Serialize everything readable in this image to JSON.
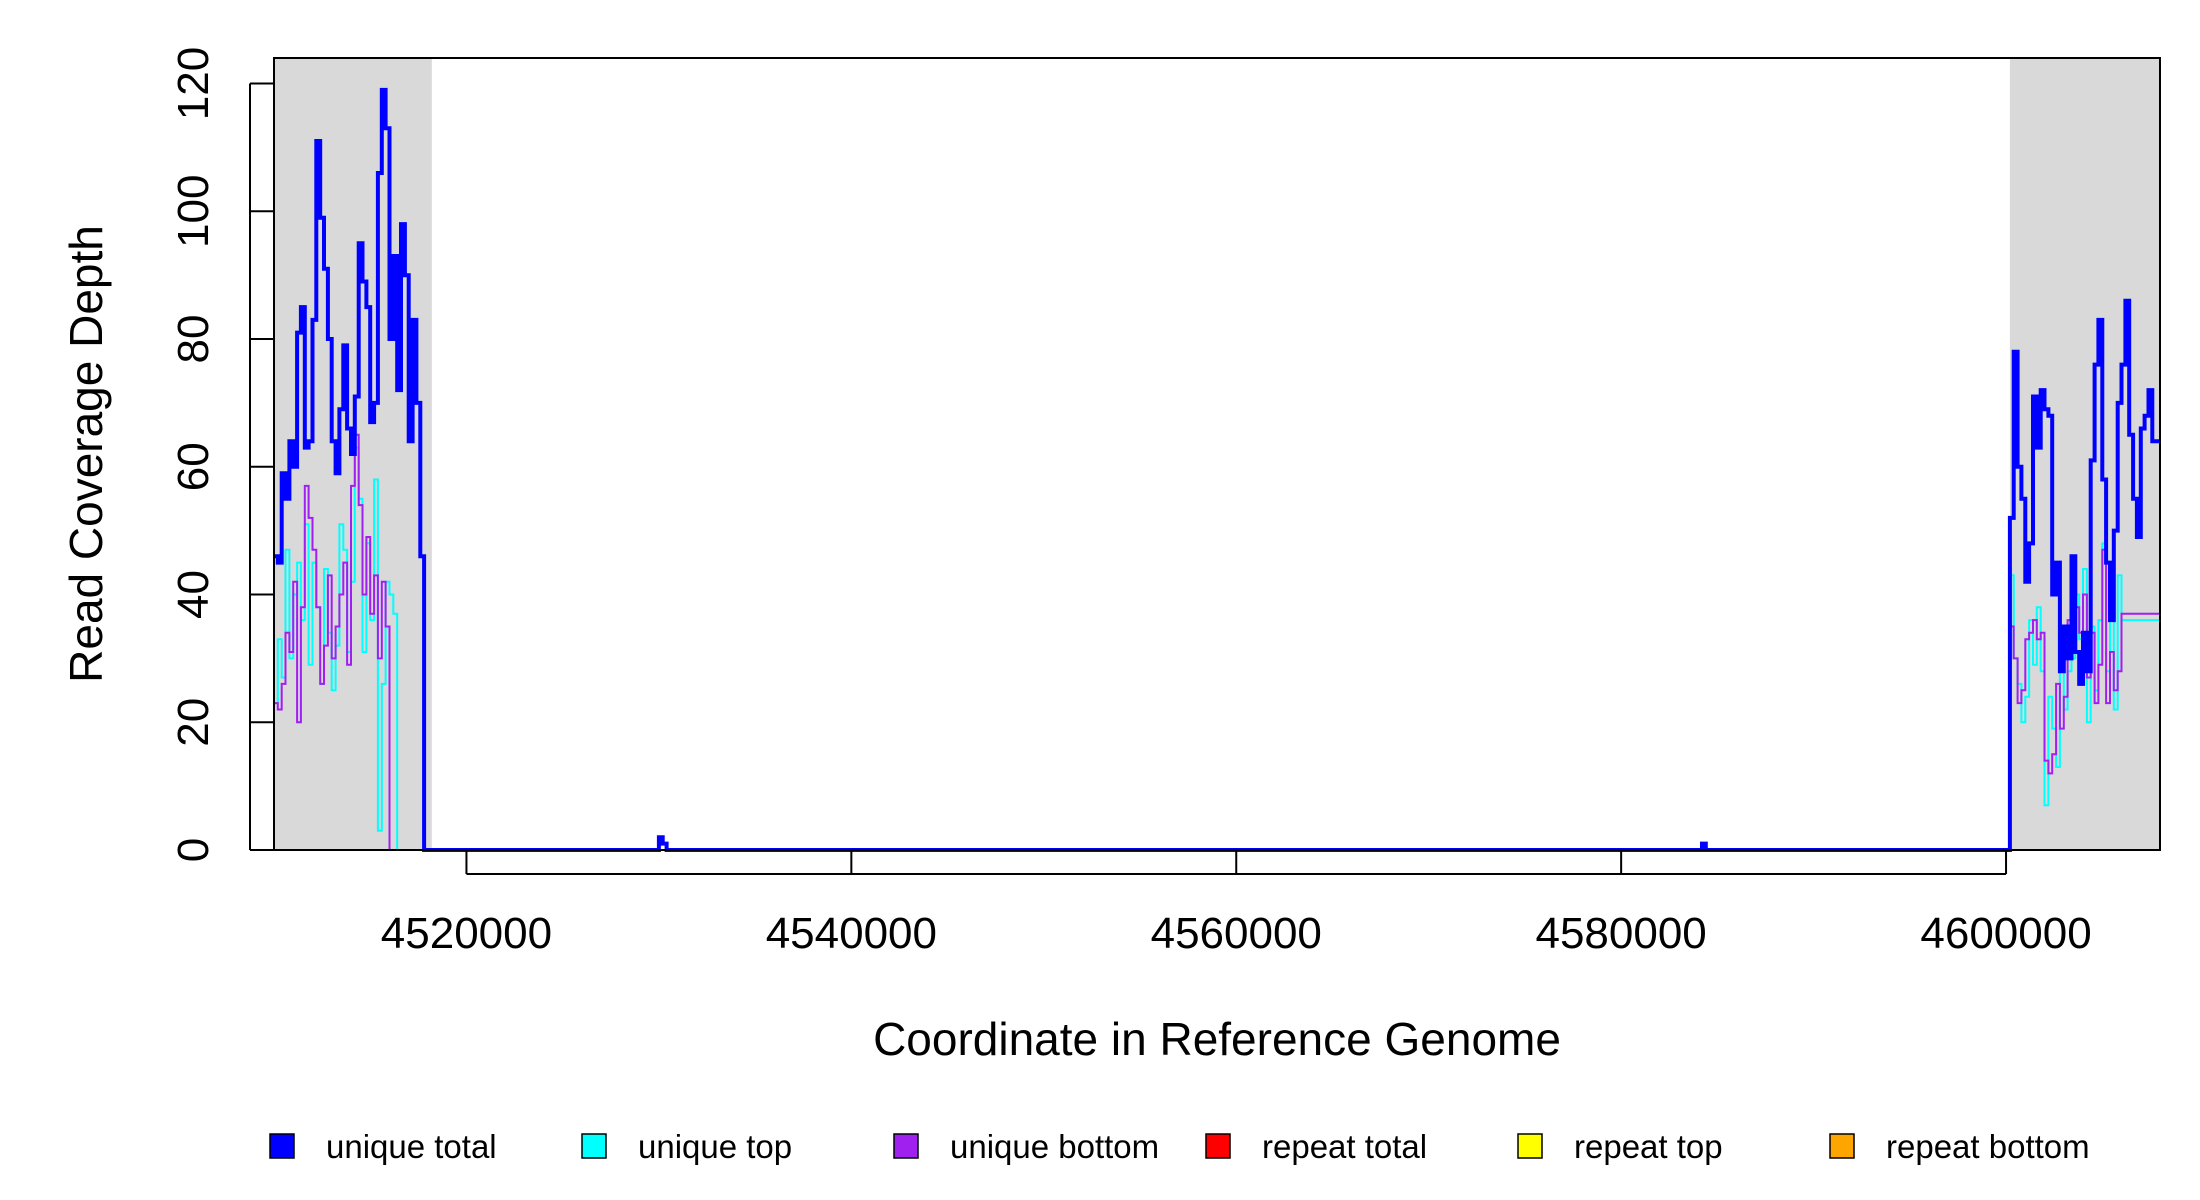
{
  "chart_data": {
    "type": "line",
    "title": "",
    "xlabel": "Coordinate in Reference Genome",
    "ylabel": "Read Coverage Depth",
    "xlim": [
      4510000,
      4608000
    ],
    "ylim": [
      0,
      124
    ],
    "x_ticks": [
      4520000,
      4540000,
      4560000,
      4580000,
      4600000
    ],
    "x_tick_labels": [
      "4520000",
      "4540000",
      "4560000",
      "4580000",
      "4600000"
    ],
    "y_ticks": [
      0,
      20,
      40,
      60,
      80,
      100,
      120
    ],
    "y_tick_labels": [
      "0",
      "20",
      "40",
      "60",
      "80",
      "100",
      "120"
    ],
    "grid": false,
    "legend_position": "bottom",
    "shaded_regions": [
      {
        "x0": 4510000,
        "x1": 4518200,
        "color": "#d9d9d9"
      },
      {
        "x0": 4600200,
        "x1": 4608000,
        "color": "#d9d9d9"
      }
    ],
    "series": [
      {
        "name": "unique total",
        "color": "#0000ff",
        "x": [
          4510000,
          4510200,
          4510400,
          4510600,
          4510800,
          4511000,
          4511200,
          4511400,
          4511600,
          4511800,
          4512000,
          4512200,
          4512400,
          4512600,
          4512800,
          4513000,
          4513200,
          4513400,
          4513600,
          4513800,
          4514000,
          4514200,
          4514400,
          4514600,
          4514800,
          4515000,
          4515200,
          4515400,
          4515600,
          4515800,
          4516000,
          4516200,
          4516400,
          4516600,
          4516800,
          4517000,
          4517200,
          4517400,
          4517600,
          4517800,
          4518000,
          4518200,
          4518400,
          4518600,
          4530000,
          4530200,
          4530400,
          4584200,
          4584400,
          4600000,
          4600200,
          4600400,
          4600600,
          4600800,
          4601000,
          4601200,
          4601400,
          4601600,
          4601800,
          4602000,
          4602200,
          4602400,
          4602600,
          4602800,
          4603000,
          4603200,
          4603400,
          4603600,
          4603800,
          4604000,
          4604200,
          4604400,
          4604600,
          4604800,
          4605000,
          4605200,
          4605400,
          4605600,
          4605800,
          4606000,
          4606200,
          4606400,
          4606600,
          4606800,
          4607000,
          4607200,
          4607400,
          4607600,
          4607800,
          4608000
        ],
        "y": [
          46,
          45,
          59,
          55,
          64,
          60,
          81,
          85,
          63,
          64,
          83,
          111,
          99,
          91,
          80,
          64,
          59,
          69,
          79,
          66,
          62,
          71,
          95,
          89,
          85,
          67,
          70,
          106,
          119,
          113,
          80,
          93,
          72,
          98,
          90,
          64,
          83,
          70,
          46,
          0,
          0,
          0,
          0,
          0,
          2,
          1,
          0,
          1,
          0,
          0,
          52,
          78,
          60,
          55,
          42,
          48,
          71,
          63,
          72,
          69,
          68,
          40,
          45,
          28,
          35,
          30,
          46,
          31,
          26,
          34,
          28,
          61,
          76,
          83,
          58,
          45,
          36,
          50,
          70,
          76,
          86,
          65,
          55,
          49,
          66,
          68,
          72,
          64,
          64,
          64
        ]
      },
      {
        "name": "unique top",
        "color": "#00ffff",
        "x": [
          4510000,
          4510200,
          4510400,
          4510600,
          4510800,
          4511000,
          4511200,
          4511400,
          4511600,
          4511800,
          4512000,
          4512200,
          4512400,
          4512600,
          4512800,
          4513000,
          4513200,
          4513400,
          4513600,
          4513800,
          4514000,
          4514200,
          4514400,
          4514600,
          4514800,
          4515000,
          4515200,
          4515400,
          4515600,
          4515800,
          4516000,
          4516200,
          4516400,
          4516600,
          4516800,
          4517000,
          4517200,
          4517400,
          4517600,
          4517800,
          4518000,
          4518200,
          4518400,
          4600000,
          4600200,
          4600400,
          4600600,
          4600800,
          4601000,
          4601200,
          4601400,
          4601600,
          4601800,
          4602000,
          4602200,
          4602400,
          4602600,
          4602800,
          4603000,
          4603200,
          4603400,
          4603600,
          4603800,
          4604000,
          4604200,
          4604400,
          4604600,
          4604800,
          4605000,
          4605200,
          4605400,
          4605600,
          4605800,
          4606000,
          4606200,
          4606400,
          4606600,
          4606800,
          4607000,
          4607200,
          4607400,
          4607600,
          4607800,
          4608000
        ],
        "y": [
          23,
          33,
          27,
          47,
          30,
          40,
          45,
          36,
          51,
          29,
          45,
          38,
          26,
          44,
          34,
          25,
          32,
          51,
          47,
          31,
          42,
          63,
          55,
          31,
          48,
          36,
          58,
          3,
          26,
          42,
          40,
          37,
          0,
          0,
          0,
          0,
          0,
          0,
          0,
          0,
          0,
          0,
          0,
          0,
          43,
          30,
          26,
          20,
          24,
          36,
          29,
          38,
          28,
          7,
          24,
          19,
          13,
          35,
          22,
          28,
          30,
          40,
          33,
          44,
          20,
          35,
          25,
          36,
          48,
          28,
          40,
          22,
          43,
          36,
          36,
          36,
          36,
          36,
          36,
          36,
          36,
          36,
          36,
          36
        ],
        "x_note_skip": []
      },
      {
        "name": "unique bottom",
        "color": "#a020f0",
        "x": [
          4510000,
          4510200,
          4510400,
          4510600,
          4510800,
          4511000,
          4511200,
          4511400,
          4511600,
          4511800,
          4512000,
          4512200,
          4512400,
          4512600,
          4512800,
          4513000,
          4513200,
          4513400,
          4513600,
          4513800,
          4514000,
          4514200,
          4514400,
          4514600,
          4514800,
          4515000,
          4515200,
          4515400,
          4515600,
          4515800,
          4516000,
          4516200,
          4516400,
          4516600,
          4516800,
          4517000,
          4517200,
          4517400,
          4517600,
          4517800,
          4518000,
          4518200,
          4518400,
          4600000,
          4600200,
          4600400,
          4600600,
          4600800,
          4601000,
          4601200,
          4601400,
          4601600,
          4601800,
          4602000,
          4602200,
          4602400,
          4602600,
          4602800,
          4603000,
          4603200,
          4603400,
          4603600,
          4603800,
          4604000,
          4604200,
          4604400,
          4604600,
          4604800,
          4605000,
          4605200,
          4605400,
          4605600,
          4605800,
          4606000,
          4606200,
          4606400,
          4606600,
          4606800,
          4607000,
          4607200,
          4607400,
          4607600,
          4607800,
          4608000
        ],
        "y": [
          23,
          22,
          26,
          34,
          31,
          42,
          20,
          38,
          57,
          52,
          47,
          38,
          26,
          32,
          43,
          30,
          35,
          40,
          45,
          29,
          57,
          65,
          54,
          40,
          49,
          37,
          43,
          30,
          42,
          35,
          0,
          0,
          0,
          0,
          0,
          0,
          0,
          0,
          0,
          0,
          0,
          0,
          0,
          0,
          35,
          30,
          23,
          25,
          33,
          34,
          36,
          33,
          34,
          14,
          12,
          15,
          26,
          19,
          24,
          36,
          40,
          38,
          34,
          40,
          27,
          34,
          23,
          29,
          47,
          23,
          31,
          25,
          28,
          37,
          37,
          37,
          37,
          37,
          37,
          37,
          37,
          37,
          37,
          37
        ]
      },
      {
        "name": "repeat total",
        "color": "#ff0000",
        "x": [
          4510000,
          4608000
        ],
        "y": [
          0,
          0
        ]
      },
      {
        "name": "repeat top",
        "color": "#ffff00",
        "x": [
          4510000,
          4608000
        ],
        "y": [
          0,
          0
        ]
      },
      {
        "name": "repeat bottom",
        "color": "#ffa500",
        "x": [
          4510000,
          4608000
        ],
        "y": [
          0,
          0
        ]
      }
    ]
  }
}
